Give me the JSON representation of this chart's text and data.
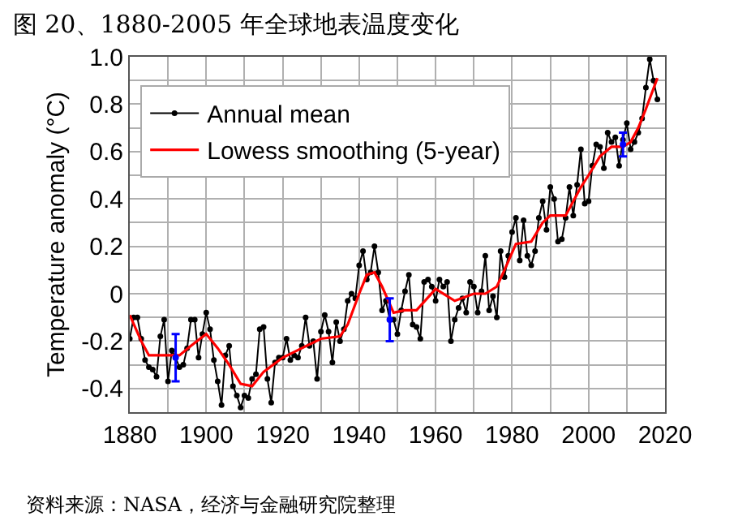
{
  "chart_data": {
    "type": "line",
    "title": "图 20、1880-2005 年全球地表温度变化",
    "ylabel": "Temperature anomaly (°C)",
    "xlim": [
      1880,
      2020
    ],
    "ylim": [
      -0.5,
      1.0
    ],
    "xticks": [
      1880,
      {
        "value": 1890,
        "label": null
      },
      1900,
      {
        "value": 1910,
        "label": null
      },
      1920,
      {
        "value": 1930,
        "label": null
      },
      1940,
      {
        "value": 1950,
        "label": null
      },
      1960,
      {
        "value": 1970,
        "label": null
      },
      1980,
      {
        "value": 1990,
        "label": null
      },
      2000,
      {
        "value": 2010,
        "label": null
      },
      2020
    ],
    "yticks": [
      {
        "value": -0.5,
        "label": null
      },
      -0.4,
      {
        "value": -0.3,
        "label": null
      },
      -0.2,
      {
        "value": -0.1,
        "label": null
      },
      0,
      {
        "value": 0.1,
        "label": null
      },
      0.2,
      {
        "value": 0.3,
        "label": null
      },
      0.4,
      {
        "value": 0.5,
        "label": null
      },
      0.6,
      {
        "value": 0.7,
        "label": null
      },
      0.8,
      {
        "value": 0.9,
        "label": null
      },
      {
        "value": 1.0,
        "label": "1.0"
      }
    ],
    "grid": true,
    "legend": "top left",
    "series": [
      {
        "name": "Annual mean",
        "color": "#000000",
        "marker": "circle",
        "x": [
          1880,
          1881,
          1882,
          1883,
          1884,
          1885,
          1886,
          1887,
          1888,
          1889,
          1890,
          1891,
          1892,
          1893,
          1894,
          1895,
          1896,
          1897,
          1898,
          1899,
          1900,
          1901,
          1902,
          1903,
          1904,
          1905,
          1906,
          1907,
          1908,
          1909,
          1910,
          1911,
          1912,
          1913,
          1914,
          1915,
          1916,
          1917,
          1918,
          1919,
          1920,
          1921,
          1922,
          1923,
          1924,
          1925,
          1926,
          1927,
          1928,
          1929,
          1930,
          1931,
          1932,
          1933,
          1934,
          1935,
          1936,
          1937,
          1938,
          1939,
          1940,
          1941,
          1942,
          1943,
          1944,
          1945,
          1946,
          1947,
          1948,
          1949,
          1950,
          1951,
          1952,
          1953,
          1954,
          1955,
          1956,
          1957,
          1958,
          1959,
          1960,
          1961,
          1962,
          1963,
          1964,
          1965,
          1966,
          1967,
          1968,
          1969,
          1970,
          1971,
          1972,
          1973,
          1974,
          1975,
          1976,
          1977,
          1978,
          1979,
          1980,
          1981,
          1982,
          1983,
          1984,
          1985,
          1986,
          1987,
          1988,
          1989,
          1990,
          1991,
          1992,
          1993,
          1994,
          1995,
          1996,
          1997,
          1998,
          1999,
          2000,
          2001,
          2002,
          2003,
          2004,
          2005,
          2006,
          2007,
          2008,
          2009,
          2010,
          2011,
          2012,
          2013,
          2014,
          2015,
          2016,
          2017,
          2018
        ],
        "values": [
          -0.19,
          -0.1,
          -0.1,
          -0.19,
          -0.28,
          -0.31,
          -0.32,
          -0.35,
          -0.18,
          -0.11,
          -0.37,
          -0.24,
          -0.27,
          -0.31,
          -0.3,
          -0.23,
          -0.11,
          -0.11,
          -0.27,
          -0.17,
          -0.08,
          -0.15,
          -0.28,
          -0.37,
          -0.47,
          -0.26,
          -0.22,
          -0.39,
          -0.43,
          -0.48,
          -0.43,
          -0.44,
          -0.36,
          -0.34,
          -0.15,
          -0.14,
          -0.36,
          -0.46,
          -0.29,
          -0.27,
          -0.27,
          -0.19,
          -0.28,
          -0.26,
          -0.27,
          -0.22,
          -0.1,
          -0.22,
          -0.2,
          -0.36,
          -0.16,
          -0.09,
          -0.16,
          -0.29,
          -0.12,
          -0.2,
          -0.15,
          -0.03,
          0.0,
          -0.02,
          0.12,
          0.18,
          0.06,
          0.09,
          0.2,
          0.09,
          -0.07,
          -0.03,
          -0.11,
          -0.11,
          -0.17,
          -0.07,
          0.01,
          0.08,
          -0.13,
          -0.14,
          -0.19,
          0.05,
          0.06,
          0.03,
          -0.03,
          0.06,
          0.03,
          0.05,
          -0.2,
          -0.11,
          -0.06,
          -0.02,
          -0.08,
          0.05,
          0.03,
          -0.08,
          0.01,
          0.16,
          -0.07,
          -0.01,
          -0.1,
          0.18,
          0.07,
          0.16,
          0.26,
          0.32,
          0.14,
          0.31,
          0.16,
          0.12,
          0.18,
          0.32,
          0.39,
          0.27,
          0.45,
          0.4,
          0.22,
          0.23,
          0.32,
          0.45,
          0.33,
          0.46,
          0.61,
          0.38,
          0.39,
          0.54,
          0.63,
          0.62,
          0.53,
          0.68,
          0.64,
          0.66,
          0.54,
          0.65,
          0.72,
          0.61,
          0.64,
          0.68,
          0.74,
          0.87,
          0.99,
          0.9,
          0.82
        ]
      },
      {
        "name": "Lowess smoothing (5-year)",
        "color": "#ff0000",
        "marker": "none",
        "x": [
          1880,
          1883,
          1885,
          1890,
          1893,
          1896,
          1900,
          1903,
          1906,
          1909,
          1912,
          1915,
          1920,
          1925,
          1930,
          1935,
          1937,
          1940,
          1942,
          1944,
          1946,
          1949,
          1952,
          1955,
          1960,
          1965,
          1970,
          1973,
          1976,
          1978,
          1981,
          1985,
          1988,
          1990,
          1994,
          1998,
          2000,
          2003,
          2006,
          2009,
          2011,
          2013,
          2015,
          2018
        ],
        "values": [
          -0.09,
          -0.2,
          -0.26,
          -0.26,
          -0.26,
          -0.22,
          -0.17,
          -0.23,
          -0.3,
          -0.38,
          -0.39,
          -0.33,
          -0.27,
          -0.23,
          -0.19,
          -0.18,
          -0.13,
          0.0,
          0.08,
          0.09,
          0.03,
          -0.08,
          -0.07,
          -0.07,
          0.02,
          -0.03,
          0.0,
          0.0,
          0.03,
          0.1,
          0.21,
          0.22,
          0.3,
          0.33,
          0.33,
          0.45,
          0.5,
          0.58,
          0.62,
          0.62,
          0.64,
          0.7,
          0.78,
          0.91
        ]
      },
      {
        "type": "scatter",
        "color": "#0000ff",
        "marker": "circle",
        "x": [
          1892,
          1948,
          2009
        ],
        "values": [
          -0.27,
          -0.11,
          0.63
        ],
        "errors": [
          0.1,
          0.09,
          0.05
        ]
      }
    ],
    "annotations": [
      "资料来源：NASA，经济与金融研究院整理"
    ]
  }
}
